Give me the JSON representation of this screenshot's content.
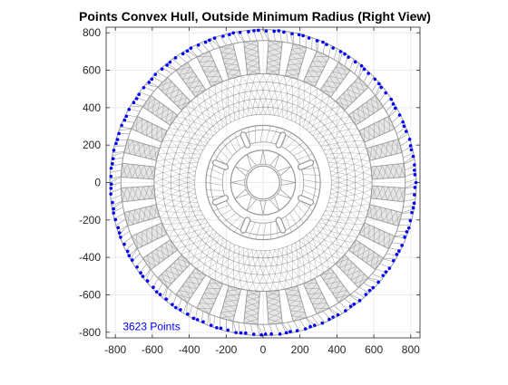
{
  "chart_data": {
    "type": "scatter",
    "title": "Points Convex Hull, Outside Minimum Radius (Right View)",
    "xlabel": "",
    "ylabel": "",
    "xlim": [
      -850,
      850
    ],
    "ylim": [
      -830,
      830
    ],
    "xticks": [
      -800,
      -600,
      -400,
      -200,
      0,
      200,
      400,
      600,
      800
    ],
    "yticks": [
      -800,
      -600,
      -400,
      -200,
      0,
      200,
      400,
      600,
      800
    ],
    "grid": true,
    "aspect": "equal",
    "annotation": {
      "text": "3623 Points",
      "x": -760,
      "y": -770,
      "color": "#0000ff"
    },
    "mesh": {
      "color": "#999999",
      "outer_radius": 830,
      "rim_inner_radius": 770,
      "tooth_inner_radius": 590,
      "tooth_count": 36,
      "ring_inner_radius": 370,
      "hub_outer_radius": 310,
      "hub_inner_radius": 175,
      "bore_radius": 90
    },
    "series": [
      {
        "role": "outside_min_radius_points",
        "color": "#0000ff",
        "marker": "dot",
        "radius": 828,
        "point_count": 150
      }
    ]
  }
}
